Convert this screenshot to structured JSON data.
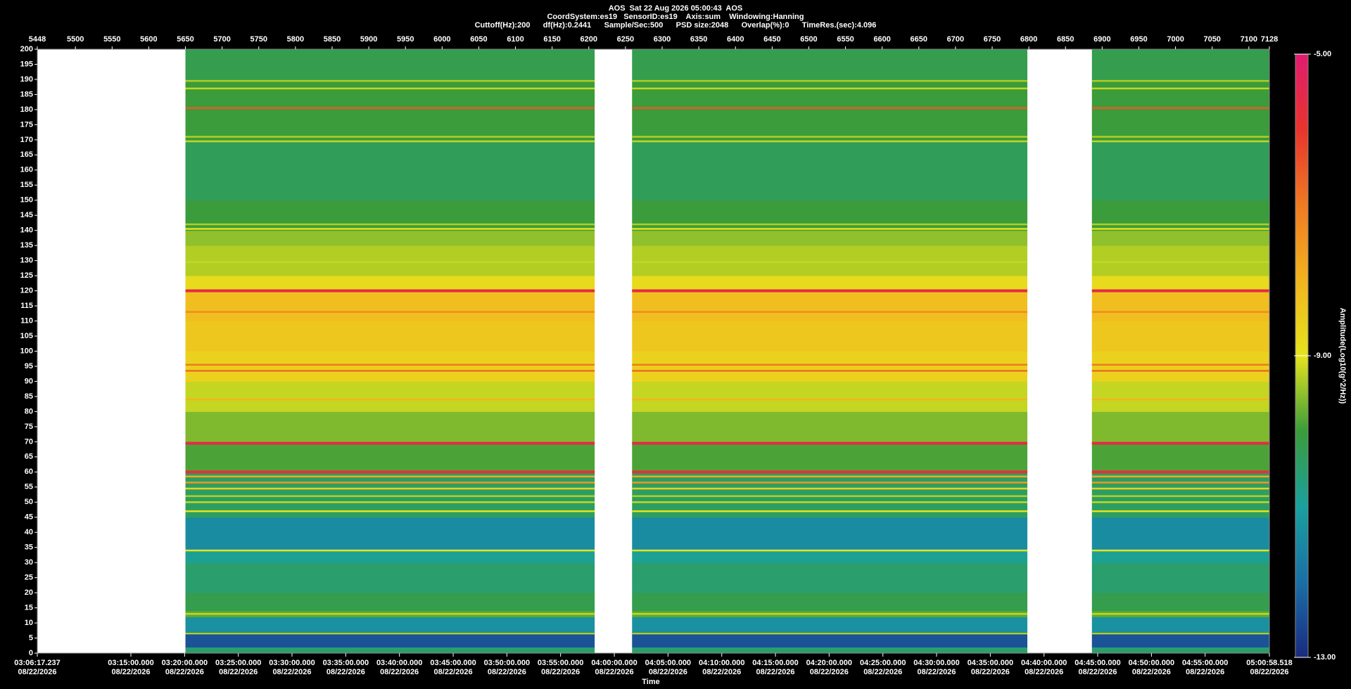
{
  "chart_data": {
    "type": "spectrogram",
    "title": "AOS  Sat 22 Aug 2026 05:00:43  AOS",
    "subtitle": [
      "CoordSystem:es19   SensorID:es19    Axis:sum    Windowing:Hanning",
      "Cuttoff(Hz):200      df(Hz):0.2441      Sample/Sec:500      PSD size:2048      Overlap(%):0      TimeRes.(sec):4.096"
    ],
    "xlabel": "Time",
    "colorbar_label": "Amplitude(Log10(g^2/Hz))",
    "xlim": [
      5448,
      7128
    ],
    "xticks": [
      5448,
      5500,
      5550,
      5600,
      5650,
      5700,
      5750,
      5800,
      5850,
      5900,
      5950,
      6000,
      6050,
      6100,
      6150,
      6200,
      6250,
      6300,
      6350,
      6400,
      6450,
      6500,
      6550,
      6600,
      6650,
      6700,
      6750,
      6800,
      6850,
      6900,
      6950,
      7000,
      7050,
      7100,
      7128
    ],
    "x2ticks": [
      {
        "value": 5448,
        "label": "03:06:17.237",
        "date": "08/22/2026"
      },
      {
        "value": 5575.6,
        "label": "03:15:00.000",
        "date": "08/22/2026"
      },
      {
        "value": 5648.9,
        "label": "03:20:00.000",
        "date": "08/22/2026"
      },
      {
        "value": 5722.1,
        "label": "03:25:00.000",
        "date": "08/22/2026"
      },
      {
        "value": 5795.3,
        "label": "03:30:00.000",
        "date": "08/22/2026"
      },
      {
        "value": 5868.6,
        "label": "03:35:00.000",
        "date": "08/22/2026"
      },
      {
        "value": 5941.8,
        "label": "03:40:00.000",
        "date": "08/22/2026"
      },
      {
        "value": 6015.1,
        "label": "03:45:00.000",
        "date": "08/22/2026"
      },
      {
        "value": 6088.3,
        "label": "03:50:00.000",
        "date": "08/22/2026"
      },
      {
        "value": 6161.5,
        "label": "03:55:00.000",
        "date": "08/22/2026"
      },
      {
        "value": 6234.8,
        "label": "04:00:00.000",
        "date": "08/22/2026"
      },
      {
        "value": 6308.0,
        "label": "04:05:00.000",
        "date": "08/22/2026"
      },
      {
        "value": 6381.3,
        "label": "04:10:00.000",
        "date": "08/22/2026"
      },
      {
        "value": 6454.5,
        "label": "04:15:00.000",
        "date": "08/22/2026"
      },
      {
        "value": 6527.7,
        "label": "04:20:00.000",
        "date": "08/22/2026"
      },
      {
        "value": 6601.0,
        "label": "04:25:00.000",
        "date": "08/22/2026"
      },
      {
        "value": 6674.2,
        "label": "04:30:00.000",
        "date": "08/22/2026"
      },
      {
        "value": 6747.5,
        "label": "04:35:00.000",
        "date": "08/22/2026"
      },
      {
        "value": 6820.7,
        "label": "04:40:00.000",
        "date": "08/22/2026"
      },
      {
        "value": 6893.9,
        "label": "04:45:00.000",
        "date": "08/22/2026"
      },
      {
        "value": 6967.2,
        "label": "04:50:00.000",
        "date": "08/22/2026"
      },
      {
        "value": 7040.4,
        "label": "04:55:00.000",
        "date": "08/22/2026"
      },
      {
        "value": 7128,
        "label": "05:00:58.518",
        "date": "08/22/2026"
      }
    ],
    "ylim": [
      0,
      200
    ],
    "yticks": [
      0,
      5,
      10,
      15,
      20,
      25,
      30,
      35,
      40,
      45,
      50,
      55,
      60,
      65,
      70,
      75,
      80,
      85,
      90,
      95,
      100,
      105,
      110,
      115,
      120,
      125,
      130,
      135,
      140,
      145,
      150,
      155,
      160,
      165,
      170,
      175,
      180,
      185,
      190,
      195,
      200
    ],
    "colorlim": [
      -13,
      -5
    ],
    "colorticks": [
      {
        "value": -5,
        "label": "-5.00"
      },
      {
        "value": -9,
        "label": "-9.00"
      },
      {
        "value": -13,
        "label": "-13.00"
      }
    ],
    "colormap": [
      "#1a2a80",
      "#1a6fa6",
      "#1aa09e",
      "#3a9c3a",
      "#e6e41c",
      "#f2b41e",
      "#f07a22",
      "#e8342c",
      "#e01c70"
    ],
    "segments": [
      [
        5650,
        6208
      ],
      [
        6259,
        6798
      ],
      [
        6886,
        7128
      ]
    ],
    "bands": [
      {
        "from": 0,
        "to": 2,
        "amplitude": -10.5
      },
      {
        "from": 2,
        "to": 7,
        "amplitude": -12.4
      },
      {
        "from": 7,
        "to": 12,
        "amplitude": -11.3
      },
      {
        "from": 12,
        "to": 14,
        "amplitude": -9.8
      },
      {
        "from": 14,
        "to": 20,
        "amplitude": -10.2
      },
      {
        "from": 20,
        "to": 30,
        "amplitude": -10.5
      },
      {
        "from": 30,
        "to": 34,
        "amplitude": -10.9
      },
      {
        "from": 34,
        "to": 45,
        "amplitude": -11.4
      },
      {
        "from": 45,
        "to": 60,
        "amplitude": -10.4
      },
      {
        "from": 60,
        "to": 70,
        "amplitude": -9.9
      },
      {
        "from": 70,
        "to": 80,
        "amplitude": -9.6
      },
      {
        "from": 80,
        "to": 90,
        "amplitude": -9.2
      },
      {
        "from": 90,
        "to": 100,
        "amplitude": -8.6
      },
      {
        "from": 100,
        "to": 110,
        "amplitude": -8.4
      },
      {
        "from": 110,
        "to": 120,
        "amplitude": -8.2
      },
      {
        "from": 120,
        "to": 125,
        "amplitude": -8.8
      },
      {
        "from": 125,
        "to": 135,
        "amplitude": -9.3
      },
      {
        "from": 135,
        "to": 140,
        "amplitude": -9.5
      },
      {
        "from": 140,
        "to": 150,
        "amplitude": -10.0
      },
      {
        "from": 150,
        "to": 170,
        "amplitude": -10.3
      },
      {
        "from": 170,
        "to": 180,
        "amplitude": -10.0
      },
      {
        "from": 180,
        "to": 190,
        "amplitude": -10.0
      },
      {
        "from": 190,
        "to": 200,
        "amplitude": -10.2
      }
    ],
    "lines": [
      {
        "freq": 6.5,
        "amplitude": -9.3
      },
      {
        "freq": 13,
        "amplitude": -9.2
      },
      {
        "freq": 34,
        "amplitude": -9.0
      },
      {
        "freq": 47,
        "amplitude": -9.0
      },
      {
        "freq": 50,
        "amplitude": -9.2
      },
      {
        "freq": 52,
        "amplitude": -9.3
      },
      {
        "freq": 54.5,
        "amplitude": -8.6
      },
      {
        "freq": 56.5,
        "amplitude": -7.5
      },
      {
        "freq": 58.5,
        "amplitude": -7.8
      },
      {
        "freq": 60,
        "amplitude": -5.8
      },
      {
        "freq": 69.5,
        "amplitude": -5.6
      },
      {
        "freq": 84,
        "amplitude": -8.0
      },
      {
        "freq": 93.5,
        "amplitude": -6.8
      },
      {
        "freq": 95.5,
        "amplitude": -7.0
      },
      {
        "freq": 113,
        "amplitude": -7.3
      },
      {
        "freq": 120,
        "amplitude": -5.6
      },
      {
        "freq": 129.5,
        "amplitude": -9.2
      },
      {
        "freq": 140.5,
        "amplitude": -9.0
      },
      {
        "freq": 142,
        "amplitude": -9.3
      },
      {
        "freq": 169.5,
        "amplitude": -9.2
      },
      {
        "freq": 171,
        "amplitude": -9.3
      },
      {
        "freq": 180.5,
        "amplitude": -6.5
      },
      {
        "freq": 187,
        "amplitude": -9.2
      },
      {
        "freq": 189.5,
        "amplitude": -9.3
      }
    ]
  }
}
